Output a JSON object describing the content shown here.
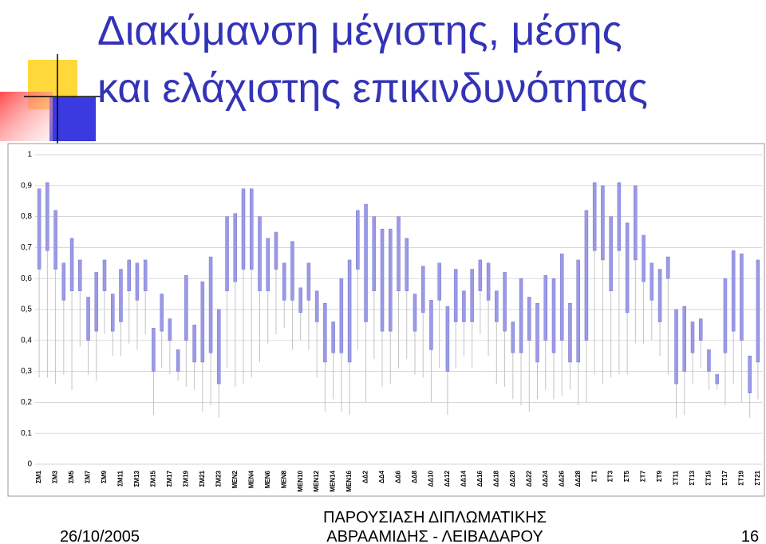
{
  "chart_data": {
    "type": "range",
    "title": [
      "Διακύμανση μέγιστης, μέσης",
      "και ελάχιστης επικινδυνότητας"
    ],
    "categories": [
      "ΣΜ1",
      null,
      "ΣΜ3",
      null,
      "ΣΜ5",
      null,
      "ΣΜ7",
      null,
      "ΣΜ9",
      null,
      "ΣΜ11",
      null,
      "ΣΜ13",
      null,
      "ΣΜ15",
      null,
      "ΣΜ17",
      null,
      "ΣΜ19",
      null,
      "ΣΜ21",
      null,
      "ΣΜ23",
      null,
      "ΜΕΝ2",
      null,
      "ΜΕΝ4",
      null,
      "ΜΕΝ6",
      null,
      "ΜΕΝ8",
      null,
      "ΜΕΝ10",
      null,
      "ΜΕΝ12",
      null,
      "ΜΕΝ14",
      null,
      "ΜΕΝ16",
      null,
      "ΔΔ2",
      null,
      "ΔΔ4",
      null,
      "ΔΔ6",
      null,
      "ΔΔ8",
      null,
      "ΔΔ10",
      null,
      "ΔΔ12",
      null,
      "ΔΔ14",
      null,
      "ΔΔ16",
      null,
      "ΔΔ18",
      null,
      "ΔΔ20",
      null,
      "ΔΔ22",
      null,
      "ΔΔ24",
      null,
      "ΔΔ26",
      null,
      "ΔΔ28",
      null,
      "ΣΤ1",
      null,
      "ΣΤ3",
      null,
      "ΣΤ5",
      null,
      "ΣΤ7",
      null,
      "ΣΤ9",
      null,
      "ΣΤ11",
      null,
      "ΣΤ13",
      null,
      "ΣΤ15",
      null,
      "ΣΤ17",
      null,
      "ΣΤ19",
      null,
      "ΣΤ21"
    ],
    "series": [
      {
        "color": "#9a9ae8",
        "values": [
          0.89,
          0.91,
          0.82,
          0.65,
          0.73,
          0.66,
          0.54,
          0.62,
          0.66,
          0.55,
          0.63,
          0.66,
          0.65,
          0.66,
          0.44,
          0.55,
          0.47,
          0.37,
          0.61,
          0.45,
          0.59,
          0.67,
          0.5,
          0.8,
          0.81,
          0.89,
          0.89,
          0.8,
          0.73,
          0.75,
          0.65,
          0.72,
          0.57,
          0.65,
          0.56,
          0.52,
          0.46,
          0.6,
          0.66,
          0.82,
          0.84,
          0.8,
          0.76,
          0.76,
          0.8,
          0.73,
          0.55,
          0.64,
          0.53,
          0.65,
          0.51,
          0.63,
          0.56,
          0.63,
          0.66,
          0.65,
          0.56,
          0.62,
          0.46,
          0.6,
          0.54,
          0.52,
          0.61,
          0.6,
          0.68,
          0.52,
          0.66,
          0.82,
          0.91,
          0.9,
          0.8,
          0.91,
          0.78,
          0.9,
          0.74,
          0.65,
          0.63,
          0.67,
          0.5,
          0.51,
          0.46,
          0.47,
          0.37,
          0.29,
          0.6,
          0.69,
          0.68,
          0.35,
          0.66
        ]
      },
      {
        "color": "#9a9ae8",
        "values": [
          0.63,
          0.69,
          0.63,
          0.53,
          0.56,
          0.56,
          0.4,
          0.43,
          0.56,
          0.43,
          0.46,
          0.56,
          0.53,
          0.56,
          0.3,
          0.43,
          0.4,
          0.3,
          0.4,
          0.33,
          0.33,
          0.36,
          0.26,
          0.56,
          0.59,
          0.63,
          0.63,
          0.56,
          0.56,
          0.63,
          0.53,
          0.53,
          0.49,
          0.53,
          0.46,
          0.33,
          0.36,
          0.36,
          0.33,
          0.63,
          0.46,
          0.56,
          0.43,
          0.43,
          0.56,
          0.56,
          0.43,
          0.49,
          0.37,
          0.53,
          0.3,
          0.46,
          0.46,
          0.46,
          0.56,
          0.53,
          0.46,
          0.43,
          0.36,
          0.36,
          0.4,
          0.33,
          0.4,
          0.36,
          0.4,
          0.33,
          0.33,
          0.4,
          0.69,
          0.66,
          0.56,
          0.69,
          0.49,
          0.66,
          0.59,
          0.53,
          0.46,
          0.6,
          0.26,
          0.3,
          0.36,
          0.4,
          0.3,
          0.26,
          0.36,
          0.43,
          0.4,
          0.23,
          0.33
        ]
      },
      {
        "color": "#c4c4c4",
        "values": [
          0.28,
          0.28,
          0.26,
          0.29,
          0.24,
          0.38,
          0.29,
          0.27,
          0.42,
          0.35,
          0.35,
          0.39,
          0.37,
          0.42,
          0.16,
          0.31,
          0.29,
          0.27,
          0.25,
          0.24,
          0.17,
          0.19,
          0.15,
          0.31,
          0.25,
          0.26,
          0.28,
          0.33,
          0.39,
          0.42,
          0.44,
          0.37,
          0.4,
          0.37,
          0.28,
          0.17,
          0.21,
          0.17,
          0.16,
          0.37,
          0.2,
          0.34,
          0.25,
          0.26,
          0.31,
          0.34,
          0.29,
          0.28,
          0.2,
          0.31,
          0.16,
          0.31,
          0.35,
          0.31,
          0.42,
          0.35,
          0.26,
          0.25,
          0.21,
          0.19,
          0.17,
          0.21,
          0.24,
          0.21,
          0.22,
          0.24,
          0.19,
          0.2,
          0.29,
          0.26,
          0.28,
          0.29,
          0.29,
          0.39,
          0.39,
          0.4,
          0.35,
          0.29,
          0.15,
          0.16,
          0.26,
          0.31,
          0.24,
          0.24,
          0.19,
          0.26,
          0.2,
          0.15,
          0.21
        ]
      }
    ],
    "ylim": [
      0,
      1
    ],
    "yticks": [
      0,
      {
        "value": 0.1,
        "label": "0,1"
      },
      {
        "value": 0.2,
        "label": "0,2"
      },
      {
        "value": 0.3,
        "label": "0,3"
      },
      {
        "value": 0.4,
        "label": "0,4"
      },
      {
        "value": 0.5,
        "label": "0,5"
      },
      {
        "value": 0.6,
        "label": "0,6"
      },
      {
        "value": 0.7,
        "label": "0,7"
      },
      {
        "value": 0.8,
        "label": "0,8"
      },
      {
        "value": 0.9,
        "label": "0,9"
      },
      1
    ],
    "grid": true
  },
  "footer": {
    "date": "26/10/2005",
    "presentation": [
      "ΠΑΡΟΥΣΙΑΣΗ ΔΙΠΛΩΜΑΤΙΚΗΣ",
      "ΑΒΡΑΑΜΙΔΗΣ - ΛΕΙΒΑΔΑΡΟΥ"
    ],
    "page": "16"
  }
}
